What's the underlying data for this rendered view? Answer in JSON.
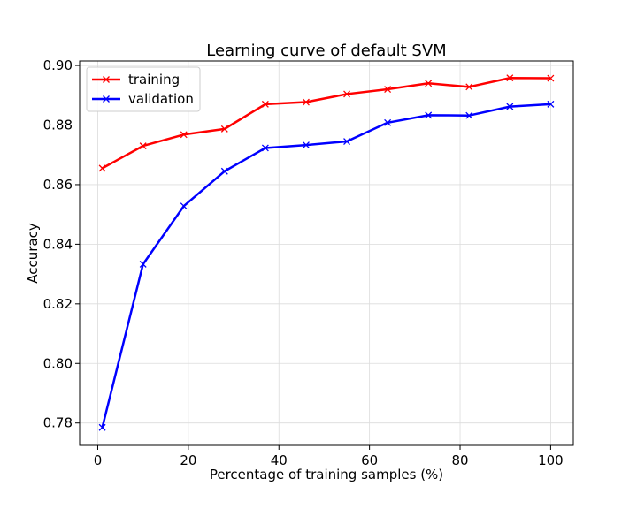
{
  "chart_data": {
    "type": "line",
    "title": "Learning curve of default SVM",
    "xlabel": "Percentage of training samples (%)",
    "ylabel": "Accuracy",
    "xlim": [
      -4,
      105
    ],
    "ylim": [
      0.7725,
      0.9015
    ],
    "xticks": [
      0,
      20,
      40,
      60,
      80,
      100
    ],
    "yticks": [
      0.78,
      0.8,
      0.82,
      0.84,
      0.86,
      0.88,
      0.9
    ],
    "grid": true,
    "legend_position": "top-left",
    "x": [
      1,
      10,
      19,
      28,
      37,
      46,
      55,
      64,
      73,
      82,
      91,
      100
    ],
    "series": [
      {
        "name": "training",
        "color": "#ff0000",
        "marker": "x",
        "values": [
          0.8655,
          0.873,
          0.8768,
          0.8787,
          0.887,
          0.8877,
          0.8904,
          0.892,
          0.894,
          0.8928,
          0.8958,
          0.8957
        ]
      },
      {
        "name": "validation",
        "color": "#0000ff",
        "marker": "x",
        "values": [
          0.7785,
          0.8333,
          0.8528,
          0.8645,
          0.8723,
          0.8733,
          0.8745,
          0.8808,
          0.8833,
          0.8832,
          0.8862,
          0.887
        ]
      }
    ]
  }
}
